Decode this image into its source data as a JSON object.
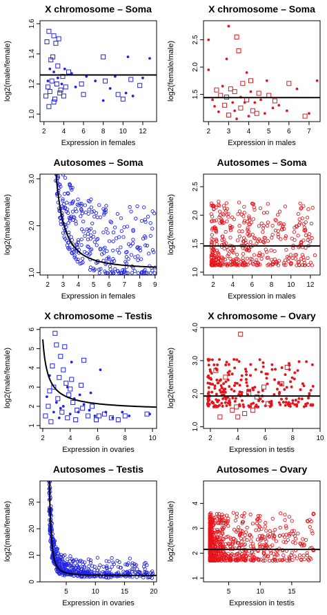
{
  "chart_data": [
    {
      "type": "scatter",
      "title": "X chromosome – Soma",
      "xlabel": "Expression in females",
      "ylabel": "log2(male/female)",
      "xlim": [
        1.6,
        13.4
      ],
      "ylim": [
        0.95,
        1.62
      ],
      "xticks": [
        2,
        4,
        6,
        8,
        10,
        12
      ],
      "yticks": [
        1.0,
        1.2,
        1.4,
        1.6
      ],
      "ytick_labels": [
        "1.0",
        "1.2",
        "1.4",
        "1.6"
      ],
      "color": "#1f22e8",
      "grid": false,
      "legend": "none",
      "fit": {
        "kind": "horizontal",
        "y": 1.26
      },
      "series": [
        {
          "marker": "square",
          "points": [
            [
              2.3,
              1.48
            ],
            [
              2.5,
              1.55
            ],
            [
              2.7,
              1.36
            ],
            [
              3.0,
              1.52
            ],
            [
              3.2,
              1.47
            ],
            [
              3.5,
              1.5
            ],
            [
              2.4,
              1.18
            ],
            [
              2.6,
              1.15
            ],
            [
              2.8,
              1.22
            ],
            [
              3.1,
              1.1
            ],
            [
              3.3,
              1.2
            ],
            [
              3.6,
              1.14
            ],
            [
              3.9,
              1.25
            ],
            [
              4.2,
              1.18
            ],
            [
              4.5,
              1.28
            ],
            [
              2.5,
              1.05
            ],
            [
              3.0,
              1.08
            ],
            [
              3.4,
              1.32
            ],
            [
              4.0,
              1.12
            ],
            [
              5.8,
              1.2
            ],
            [
              6.0,
              1.13
            ],
            [
              8.0,
              1.38
            ],
            [
              8.2,
              1.22
            ],
            [
              9.5,
              1.13
            ],
            [
              10.0,
              1.1
            ],
            [
              10.8,
              1.23
            ],
            [
              11.7,
              1.19
            ],
            [
              2.2,
              1.12
            ],
            [
              3.7,
              1.16
            ],
            [
              2.9,
              1.38
            ]
          ]
        },
        {
          "marker": "dot",
          "points": [
            [
              2.6,
              1.3
            ],
            [
              3.0,
              1.28
            ],
            [
              3.4,
              1.24
            ],
            [
              4.1,
              1.3
            ],
            [
              4.8,
              1.27
            ],
            [
              6.3,
              1.25
            ],
            [
              7.2,
              1.22
            ],
            [
              8.7,
              1.17
            ],
            [
              9.2,
              1.25
            ],
            [
              10.5,
              1.38
            ],
            [
              11.0,
              1.12
            ],
            [
              12.0,
              1.24
            ],
            [
              12.7,
              1.37
            ],
            [
              2.4,
              1.22
            ],
            [
              3.8,
              1.2
            ],
            [
              5.2,
              1.18
            ],
            [
              8.0,
              1.09
            ],
            [
              10.3,
              1.14
            ]
          ]
        }
      ]
    },
    {
      "type": "scatter",
      "title": "X chromosome – Soma",
      "xlabel": "Expression in males",
      "ylabel": "log2(female/male)",
      "xlim": [
        1.75,
        7.55
      ],
      "ylim": [
        1.0,
        2.85
      ],
      "xticks": [
        2,
        3,
        4,
        5,
        6,
        7
      ],
      "yticks": [
        1.5,
        2.0,
        2.5
      ],
      "ytick_labels": [
        "1.5",
        "2.0",
        "2.5"
      ],
      "color": "#e8141b",
      "grid": false,
      "legend": "none",
      "fit": {
        "kind": "horizontal",
        "y": 1.44
      },
      "series": [
        {
          "marker": "square",
          "points": [
            [
              2.8,
              1.3
            ],
            [
              2.9,
              1.45
            ],
            [
              3.1,
              1.6
            ],
            [
              3.3,
              1.55
            ],
            [
              3.4,
              2.55
            ],
            [
              3.5,
              2.3
            ],
            [
              3.6,
              1.25
            ],
            [
              3.7,
              1.7
            ],
            [
              4.1,
              1.75
            ],
            [
              4.4,
              1.15
            ],
            [
              4.5,
              1.52
            ],
            [
              5.0,
              1.48
            ],
            [
              5.3,
              1.38
            ],
            [
              6.0,
              1.7
            ],
            [
              6.8,
              1.1
            ],
            [
              2.6,
              1.48
            ],
            [
              3.0,
              1.12
            ],
            [
              3.9,
              1.4
            ],
            [
              2.4,
              1.58
            ],
            [
              4.2,
              1.2
            ]
          ]
        },
        {
          "marker": "dot",
          "points": [
            [
              2.0,
              1.95
            ],
            [
              2.0,
              2.5
            ],
            [
              2.3,
              1.28
            ],
            [
              2.5,
              1.18
            ],
            [
              2.7,
              1.65
            ],
            [
              2.9,
              2.15
            ],
            [
              3.0,
              2.75
            ],
            [
              3.2,
              1.35
            ],
            [
              3.4,
              1.05
            ],
            [
              3.6,
              1.45
            ],
            [
              3.8,
              1.35
            ],
            [
              3.9,
              1.9
            ],
            [
              4.1,
              1.55
            ],
            [
              4.3,
              1.35
            ],
            [
              4.6,
              1.4
            ],
            [
              4.9,
              1.75
            ],
            [
              5.2,
              1.25
            ],
            [
              5.5,
              1.3
            ],
            [
              5.9,
              1.2
            ],
            [
              6.4,
              1.6
            ],
            [
              7.0,
              1.15
            ],
            [
              7.4,
              1.75
            ],
            [
              2.2,
              1.4
            ],
            [
              3.3,
              1.2
            ],
            [
              4.0,
              1.1
            ],
            [
              4.8,
              1.15
            ]
          ]
        }
      ]
    },
    {
      "type": "scatter",
      "title": "Autosomes – Soma",
      "xlabel": "Expression in females",
      "ylabel": "log2(male/female)",
      "xlim": [
        1.5,
        9.1
      ],
      "ylim": [
        0.95,
        3.1
      ],
      "xticks": [
        2,
        3,
        4,
        5,
        6,
        7,
        8,
        9
      ],
      "yticks": [
        1.0,
        2.0,
        3.0
      ],
      "ytick_labels": [
        "1.0",
        "2.0",
        "3.0"
      ],
      "color": "#1f22e8",
      "grid": false,
      "legend": "none",
      "fit": {
        "kind": "decay",
        "a": 1.07,
        "b": 2.2,
        "c": 1.9,
        "x0": 1.85
      },
      "series": [
        {
          "marker": "circle",
          "points": []
        }
      ],
      "fill": {
        "n": 480,
        "seed": 11,
        "xmin": 1.8,
        "xmax": 9.0,
        "spread": 0.55,
        "skew": 2.2
      }
    },
    {
      "type": "scatter",
      "title": "Autosomes – Soma",
      "xlabel": "Expression in males",
      "ylabel": "log2(female/male)",
      "xlim": [
        1.0,
        13.0
      ],
      "ylim": [
        0.95,
        2.72
      ],
      "xticks": [
        2,
        4,
        6,
        8,
        10,
        12
      ],
      "yticks": [
        1.0,
        1.5,
        2.0,
        2.5
      ],
      "ytick_labels": [
        "1.0",
        "1.5",
        "2.0",
        "2.5"
      ],
      "color": "#e8141b",
      "grid": false,
      "legend": "none",
      "fit": {
        "kind": "horizontal",
        "y": 1.46
      },
      "series": [
        {
          "marker": "circle",
          "points": []
        }
      ],
      "fill": {
        "n": 420,
        "seed": 29,
        "xmin": 1.8,
        "xmax": 12.6,
        "spread": 0.35,
        "skew": 1.8,
        "center": 1.42
      }
    },
    {
      "type": "scatter",
      "title": "X chromosome – Testis",
      "xlabel": "Expression in ovaries",
      "ylabel": "log2(male/female)",
      "xlim": [
        1.8,
        10.3
      ],
      "ylim": [
        0.85,
        6.1
      ],
      "xticks": [
        2,
        4,
        6,
        8,
        10
      ],
      "yticks": [
        1,
        2,
        3,
        4,
        5,
        6
      ],
      "ytick_labels": [
        "1",
        "2",
        "3",
        "4",
        "5",
        "6"
      ],
      "color": "#1f22e8",
      "grid": false,
      "legend": "none",
      "fit": {
        "kind": "decay",
        "a": 1.75,
        "b": 1.45,
        "c": 0.9,
        "x0": 2.0
      },
      "series": [
        {
          "marker": "square",
          "points": [
            [
              2.4,
              2.0
            ],
            [
              2.7,
              4.1
            ],
            [
              2.9,
              5.8
            ],
            [
              3.0,
              5.2
            ],
            [
              3.3,
              4.6
            ],
            [
              3.5,
              3.9
            ],
            [
              3.7,
              3.2
            ],
            [
              3.9,
              2.6
            ],
            [
              4.2,
              2.2
            ],
            [
              4.5,
              1.8
            ],
            [
              4.8,
              3.1
            ],
            [
              5.0,
              4.4
            ],
            [
              5.3,
              1.5
            ],
            [
              5.6,
              2.0
            ],
            [
              5.9,
              1.3
            ],
            [
              6.1,
              1.5
            ],
            [
              6.5,
              1.6
            ],
            [
              7.0,
              1.4
            ],
            [
              8.0,
              1.5
            ],
            [
              9.6,
              1.6
            ],
            [
              2.2,
              1.5
            ],
            [
              2.6,
              1.2
            ],
            [
              3.1,
              2.4
            ],
            [
              3.4,
              1.7
            ],
            [
              3.8,
              1.4
            ],
            [
              4.0,
              2.9
            ],
            [
              4.4,
              1.3
            ],
            [
              2.8,
              3.0
            ],
            [
              3.6,
              5.1
            ],
            [
              4.9,
              1.9
            ],
            [
              7.5,
              1.3
            ],
            [
              3.2,
              3.5
            ],
            [
              2.5,
              2.8
            ],
            [
              4.1,
              3.4
            ]
          ]
        },
        {
          "marker": "dot",
          "points": [
            [
              2.3,
              2.5
            ],
            [
              2.5,
              3.6
            ],
            [
              2.8,
              1.7
            ],
            [
              3.0,
              2.2
            ],
            [
              3.2,
              1.4
            ],
            [
              3.5,
              2.0
            ],
            [
              3.8,
              3.0
            ],
            [
              4.0,
              1.6
            ],
            [
              4.3,
              2.4
            ],
            [
              4.6,
              1.7
            ],
            [
              5.0,
              2.1
            ],
            [
              5.4,
              1.8
            ],
            [
              5.8,
              1.5
            ],
            [
              6.2,
              3.9
            ],
            [
              6.6,
              1.7
            ],
            [
              7.1,
              1.4
            ],
            [
              7.8,
              1.7
            ],
            [
              8.3,
              1.5
            ],
            [
              9.8,
              1.6
            ],
            [
              4.1,
              4.3
            ],
            [
              5.5,
              2.7
            ],
            [
              3.3,
              1.9
            ],
            [
              4.7,
              2.6
            ]
          ]
        }
      ]
    },
    {
      "type": "scatter",
      "title": "X chromosome – Ovary",
      "xlabel": "Expression in testis",
      "ylabel": "log2(female/male)",
      "xlim": [
        1.5,
        10.0
      ],
      "ylim": [
        0.95,
        4.0
      ],
      "xticks": [
        2,
        4,
        6,
        8,
        10
      ],
      "yticks": [
        1.0,
        2.0,
        3.0,
        4.0
      ],
      "ytick_labels": [
        "1.0",
        "2.0",
        "3.0",
        "4.0"
      ],
      "color": "#e8141b",
      "grid": false,
      "legend": "none",
      "fit": {
        "kind": "horizontal",
        "y": 1.93
      },
      "series": [
        {
          "marker": "square",
          "points": [
            [
              2.4,
              2.7
            ],
            [
              2.9,
              2.1
            ],
            [
              3.3,
              1.8
            ],
            [
              3.6,
              1.5
            ],
            [
              3.9,
              1.6
            ],
            [
              4.2,
              3.8
            ],
            [
              4.5,
              1.4
            ],
            [
              4.8,
              2.0
            ],
            [
              5.1,
              1.5
            ],
            [
              5.4,
              1.9
            ],
            [
              5.9,
              2.2
            ],
            [
              6.2,
              1.7
            ],
            [
              7.2,
              2.3
            ],
            [
              7.6,
              2.8
            ],
            [
              2.7,
              1.3
            ],
            [
              3.1,
              2.5
            ],
            [
              4.0,
              1.3
            ]
          ]
        },
        {
          "marker": "dot",
          "points": []
        }
      ],
      "fill": {
        "n": 240,
        "seed": 41,
        "xmin": 1.8,
        "xmax": 9.6,
        "spread": 0.45,
        "skew": 1.6,
        "center": 1.9
      }
    },
    {
      "type": "scatter",
      "title": "Autosomes – Testis",
      "xlabel": "Expression in ovaries",
      "ylabel": "log2(male/female)",
      "xlim": [
        0.5,
        20.5
      ],
      "ylim": [
        0,
        38
      ],
      "xticks": [
        5,
        10,
        15,
        20
      ],
      "yticks": [
        0,
        10,
        20,
        30
      ],
      "ytick_labels": [
        "0",
        "10",
        "20",
        "30"
      ],
      "color": "#1f22e8",
      "grid": false,
      "legend": "none",
      "fit": {
        "kind": "decay",
        "a": 2.4,
        "b": 16.0,
        "c": 2.2,
        "x0": 1.75
      },
      "series": [
        {
          "marker": "circle",
          "points": []
        }
      ],
      "fill": {
        "n": 700,
        "seed": 57,
        "xmin": 1.8,
        "xmax": 20.0,
        "spread": 6.5,
        "skew": 3.2,
        "decay": true
      }
    },
    {
      "type": "scatter",
      "title": "Autosomes – Ovary",
      "xlabel": "Expression in testis",
      "ylabel": "log2(female/male)",
      "xlim": [
        1.0,
        19.5
      ],
      "ylim": [
        0.85,
        4.9
      ],
      "xticks": [
        5,
        10,
        15
      ],
      "yticks": [
        1,
        2,
        3,
        4
      ],
      "ytick_labels": [
        "1",
        "2",
        "3",
        "4"
      ],
      "color": "#e8141b",
      "grid": false,
      "legend": "none",
      "fit": {
        "kind": "horizontal",
        "y": 2.15
      },
      "series": [
        {
          "marker": "circle",
          "points": []
        }
      ],
      "fill": {
        "n": 720,
        "seed": 73,
        "xmin": 2.0,
        "xmax": 18.5,
        "spread": 0.6,
        "skew": 3.0,
        "center": 2.0
      }
    }
  ]
}
